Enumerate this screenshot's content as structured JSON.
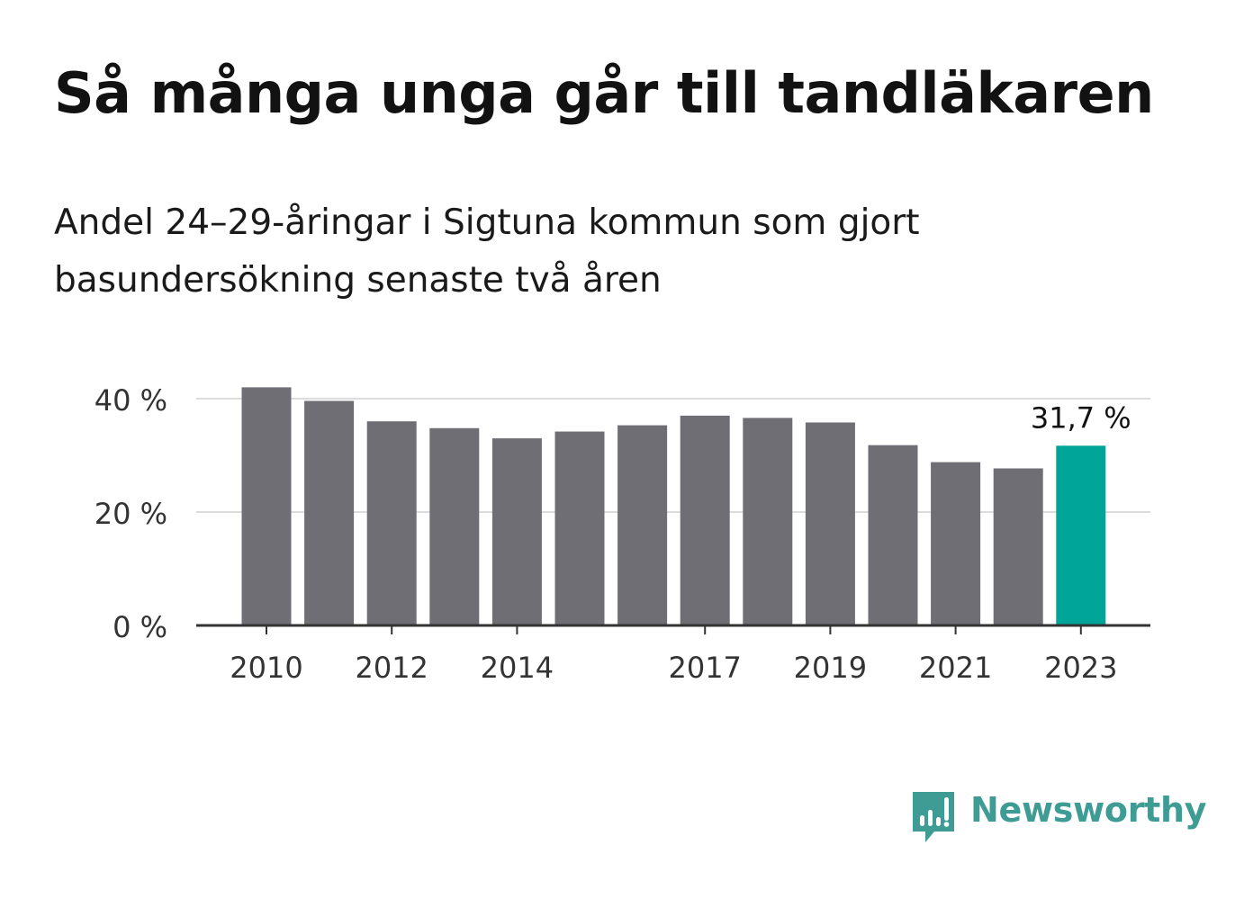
{
  "title": "Så många unga går till tandläkaren",
  "subtitle": "Andel 24–29-åringar i Sigtuna kommun som gjort basundersökning senaste två åren",
  "brand": {
    "name": "Newsworthy",
    "icon": "newsworthy-logo-icon",
    "color": "#3f9c95"
  },
  "colors": {
    "bar": "#6f6e74",
    "highlight": "#00a599",
    "grid": "#dcdcdc",
    "axis": "#333333"
  },
  "chart_data": {
    "type": "bar",
    "categories": [
      "2010",
      "2011",
      "2012",
      "2013",
      "2014",
      "2015",
      "2016",
      "2017",
      "2018",
      "2019",
      "2020",
      "2021",
      "2022",
      "2023"
    ],
    "values": [
      42.0,
      39.6,
      36.0,
      34.8,
      33.0,
      34.2,
      35.3,
      37.0,
      36.6,
      35.8,
      31.8,
      28.8,
      27.7,
      31.7
    ],
    "ylim": [
      0,
      40
    ],
    "yticks": [
      0,
      20,
      40
    ],
    "ytick_labels": [
      "0 %",
      "20 %",
      "40 %"
    ],
    "xtick_labels": [
      "2010",
      "2012",
      "2014",
      "2017",
      "2019",
      "2021",
      "2023"
    ],
    "highlight": {
      "category": "2023",
      "label": "31,7 %"
    },
    "grid": true,
    "xlabel": "",
    "ylabel": ""
  }
}
